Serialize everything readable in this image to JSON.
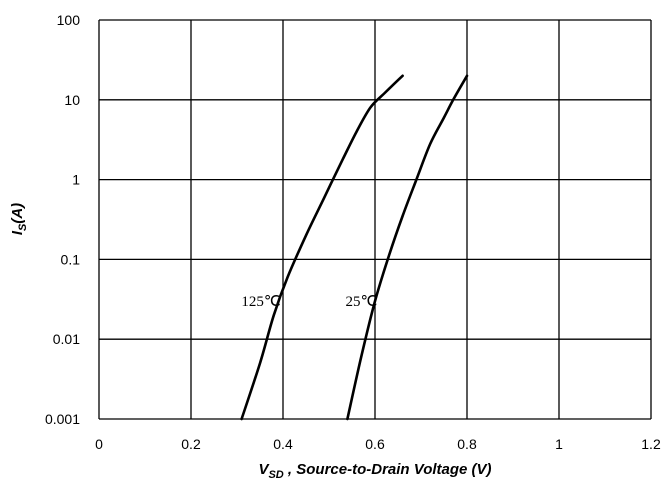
{
  "chart_data": {
    "type": "line",
    "title": "",
    "xlabel": {
      "main": "V",
      "sub": "SD",
      "rest": " , Source-to-Drain Voltage (V)"
    },
    "ylabel": {
      "main": "I",
      "sub": "S",
      "rest": "(A)"
    },
    "xlim": [
      0,
      1.2
    ],
    "ylim": [
      0.001,
      100
    ],
    "yscale": "log",
    "grid": true,
    "x_ticks": [
      {
        "value": 0,
        "label": "0"
      },
      {
        "value": 0.2,
        "label": "0.2"
      },
      {
        "value": 0.4,
        "label": "0.4"
      },
      {
        "value": 0.6,
        "label": "0.6"
      },
      {
        "value": 0.8,
        "label": "0.8"
      },
      {
        "value": 1.0,
        "label": "1"
      },
      {
        "value": 1.2,
        "label": "1.2"
      }
    ],
    "y_ticks": [
      {
        "value": 0.001,
        "label": "0.001"
      },
      {
        "value": 0.01,
        "label": "0.01"
      },
      {
        "value": 0.1,
        "label": "0.1"
      },
      {
        "value": 1,
        "label": "1"
      },
      {
        "value": 10,
        "label": "10"
      },
      {
        "value": 100,
        "label": "100"
      }
    ],
    "series": [
      {
        "name": "125℃",
        "x": [
          0.31,
          0.35,
          0.38,
          0.41,
          0.45,
          0.49,
          0.53,
          0.56,
          0.59,
          0.62,
          0.66
        ],
        "y": [
          0.001,
          0.005,
          0.02,
          0.06,
          0.2,
          0.6,
          1.8,
          4.0,
          8.0,
          12.0,
          20.0
        ]
      },
      {
        "name": "25℃",
        "x": [
          0.54,
          0.57,
          0.6,
          0.63,
          0.66,
          0.69,
          0.72,
          0.75,
          0.77,
          0.8
        ],
        "y": [
          0.001,
          0.006,
          0.03,
          0.11,
          0.35,
          1.0,
          2.8,
          6.0,
          10.0,
          20.0
        ]
      }
    ],
    "annotations": [
      {
        "text": "125℃",
        "x": 0.395,
        "y": 0.03
      },
      {
        "text": "25℃",
        "x": 0.605,
        "y": 0.03
      }
    ]
  }
}
